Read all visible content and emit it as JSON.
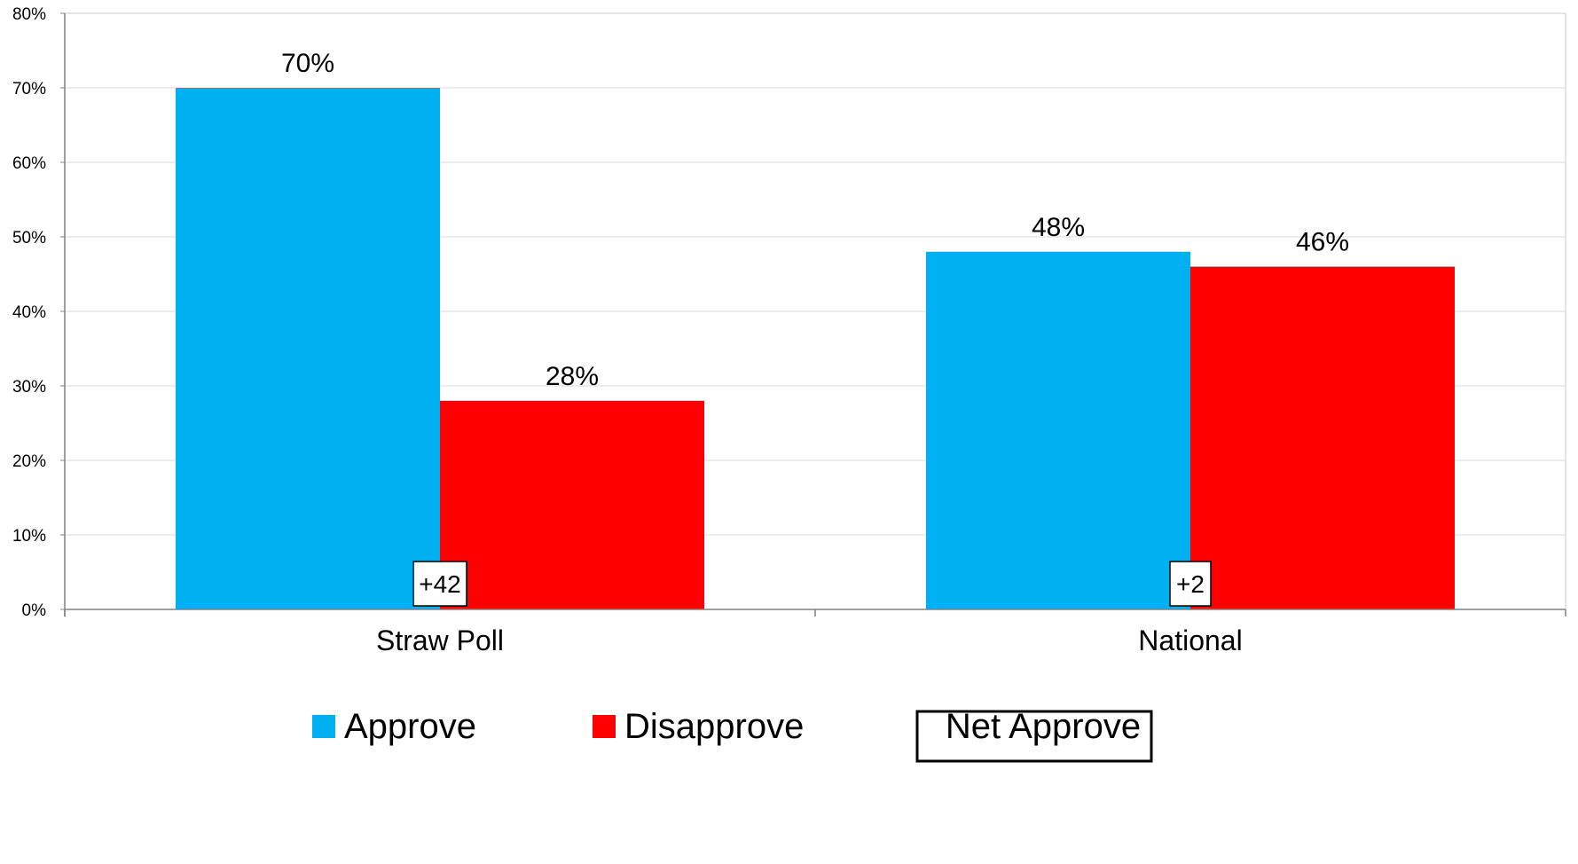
{
  "chart_data": {
    "type": "bar",
    "categories": [
      "Straw Poll",
      "National"
    ],
    "series": [
      {
        "name": "Approve",
        "values": [
          70,
          48
        ],
        "color": "#00B0F0"
      },
      {
        "name": "Disapprove",
        "values": [
          28,
          46
        ],
        "color": "#FF0000"
      }
    ],
    "data_labels": {
      "Approve": [
        "70%",
        "48%"
      ],
      "Disapprove": [
        "28%",
        "46%"
      ]
    },
    "net_approve": {
      "name": "Net Approve",
      "labels": [
        "+42",
        "+2"
      ]
    },
    "ylim": [
      0,
      80
    ],
    "yticks": [
      0,
      10,
      20,
      30,
      40,
      50,
      60,
      70,
      80
    ],
    "ytick_labels": [
      "0%",
      "10%",
      "20%",
      "30%",
      "40%",
      "50%",
      "60%",
      "70%",
      "80%"
    ],
    "grid": true,
    "legend_position": "bottom",
    "title": "",
    "xlabel": "",
    "ylabel": ""
  }
}
